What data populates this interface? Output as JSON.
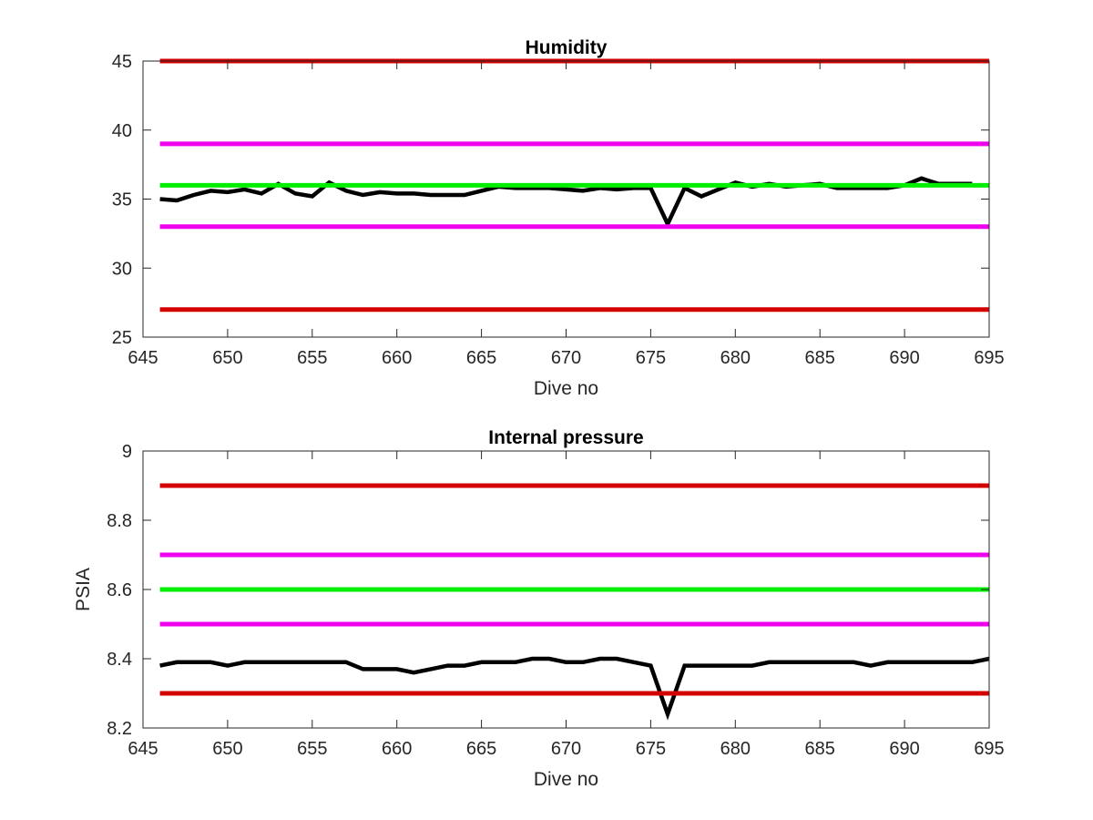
{
  "chart_data": [
    {
      "type": "line",
      "title": "Humidity",
      "xlabel": "Dive no",
      "ylabel": "",
      "xlim": [
        645,
        695
      ],
      "ylim": [
        25,
        45
      ],
      "xticks": [
        645,
        650,
        655,
        660,
        665,
        670,
        675,
        680,
        685,
        690,
        695
      ],
      "yticks": [
        25,
        30,
        35,
        40,
        45
      ],
      "grid": false,
      "series": [
        {
          "color": "#000000",
          "kind": "line",
          "x": [
            646,
            647,
            648,
            649,
            650,
            651,
            652,
            653,
            654,
            655,
            656,
            657,
            658,
            659,
            660,
            661,
            662,
            663,
            664,
            665,
            666,
            667,
            668,
            669,
            670,
            671,
            672,
            673,
            674,
            675,
            676,
            677,
            678,
            679,
            680,
            681,
            682,
            683,
            684,
            685,
            686,
            687,
            688,
            689,
            690,
            691,
            692,
            693,
            694
          ],
          "y": [
            35.0,
            34.9,
            35.3,
            35.6,
            35.5,
            35.7,
            35.4,
            36.1,
            35.4,
            35.2,
            36.2,
            35.6,
            35.3,
            35.5,
            35.4,
            35.4,
            35.3,
            35.3,
            35.3,
            35.6,
            35.9,
            35.8,
            35.8,
            35.8,
            35.7,
            35.6,
            35.8,
            35.7,
            35.8,
            35.8,
            33.2,
            35.8,
            35.2,
            35.7,
            36.2,
            35.9,
            36.1,
            35.9,
            36.0,
            36.1,
            35.8,
            35.8,
            35.8,
            35.8,
            36.0,
            36.5,
            36.1,
            36.1,
            36.1
          ]
        },
        {
          "color": "#d40000",
          "kind": "hline",
          "value": 45,
          "x": [
            646,
            695
          ]
        },
        {
          "color": "#ee00ee",
          "kind": "hline",
          "value": 39,
          "x": [
            646,
            695
          ]
        },
        {
          "color": "#00ee00",
          "kind": "hline",
          "value": 36,
          "x": [
            646,
            695
          ]
        },
        {
          "color": "#ee00ee",
          "kind": "hline",
          "value": 33,
          "x": [
            646,
            695
          ]
        },
        {
          "color": "#d40000",
          "kind": "hline",
          "value": 27,
          "x": [
            646,
            695
          ]
        }
      ]
    },
    {
      "type": "line",
      "title": "Internal pressure",
      "xlabel": "Dive no",
      "ylabel": "PSIA",
      "xlim": [
        645,
        695
      ],
      "ylim": [
        8.2,
        9
      ],
      "xticks": [
        645,
        650,
        655,
        660,
        665,
        670,
        675,
        680,
        685,
        690,
        695
      ],
      "yticks": [
        8.2,
        8.4,
        8.6,
        8.8,
        9
      ],
      "grid": false,
      "series": [
        {
          "color": "#000000",
          "kind": "line",
          "x": [
            646,
            647,
            648,
            649,
            650,
            651,
            652,
            653,
            654,
            655,
            656,
            657,
            658,
            659,
            660,
            661,
            662,
            663,
            664,
            665,
            666,
            667,
            668,
            669,
            670,
            671,
            672,
            673,
            674,
            675,
            676,
            677,
            678,
            679,
            680,
            681,
            682,
            683,
            684,
            685,
            686,
            687,
            688,
            689,
            690,
            691,
            692,
            693,
            694,
            695
          ],
          "y": [
            8.38,
            8.39,
            8.39,
            8.39,
            8.38,
            8.39,
            8.39,
            8.39,
            8.39,
            8.39,
            8.39,
            8.39,
            8.37,
            8.37,
            8.37,
            8.36,
            8.37,
            8.38,
            8.38,
            8.39,
            8.39,
            8.39,
            8.4,
            8.4,
            8.39,
            8.39,
            8.4,
            8.4,
            8.39,
            8.38,
            8.24,
            8.38,
            8.38,
            8.38,
            8.38,
            8.38,
            8.39,
            8.39,
            8.39,
            8.39,
            8.39,
            8.39,
            8.38,
            8.39,
            8.39,
            8.39,
            8.39,
            8.39,
            8.39,
            8.4
          ]
        },
        {
          "color": "#d40000",
          "kind": "hline",
          "value": 8.9,
          "x": [
            646,
            695
          ]
        },
        {
          "color": "#ee00ee",
          "kind": "hline",
          "value": 8.7,
          "x": [
            646,
            695
          ]
        },
        {
          "color": "#00ee00",
          "kind": "hline",
          "value": 8.6,
          "x": [
            646,
            695
          ]
        },
        {
          "color": "#ee00ee",
          "kind": "hline",
          "value": 8.5,
          "x": [
            646,
            695
          ]
        },
        {
          "color": "#d40000",
          "kind": "hline",
          "value": 8.3,
          "x": [
            646,
            695
          ]
        }
      ]
    }
  ]
}
